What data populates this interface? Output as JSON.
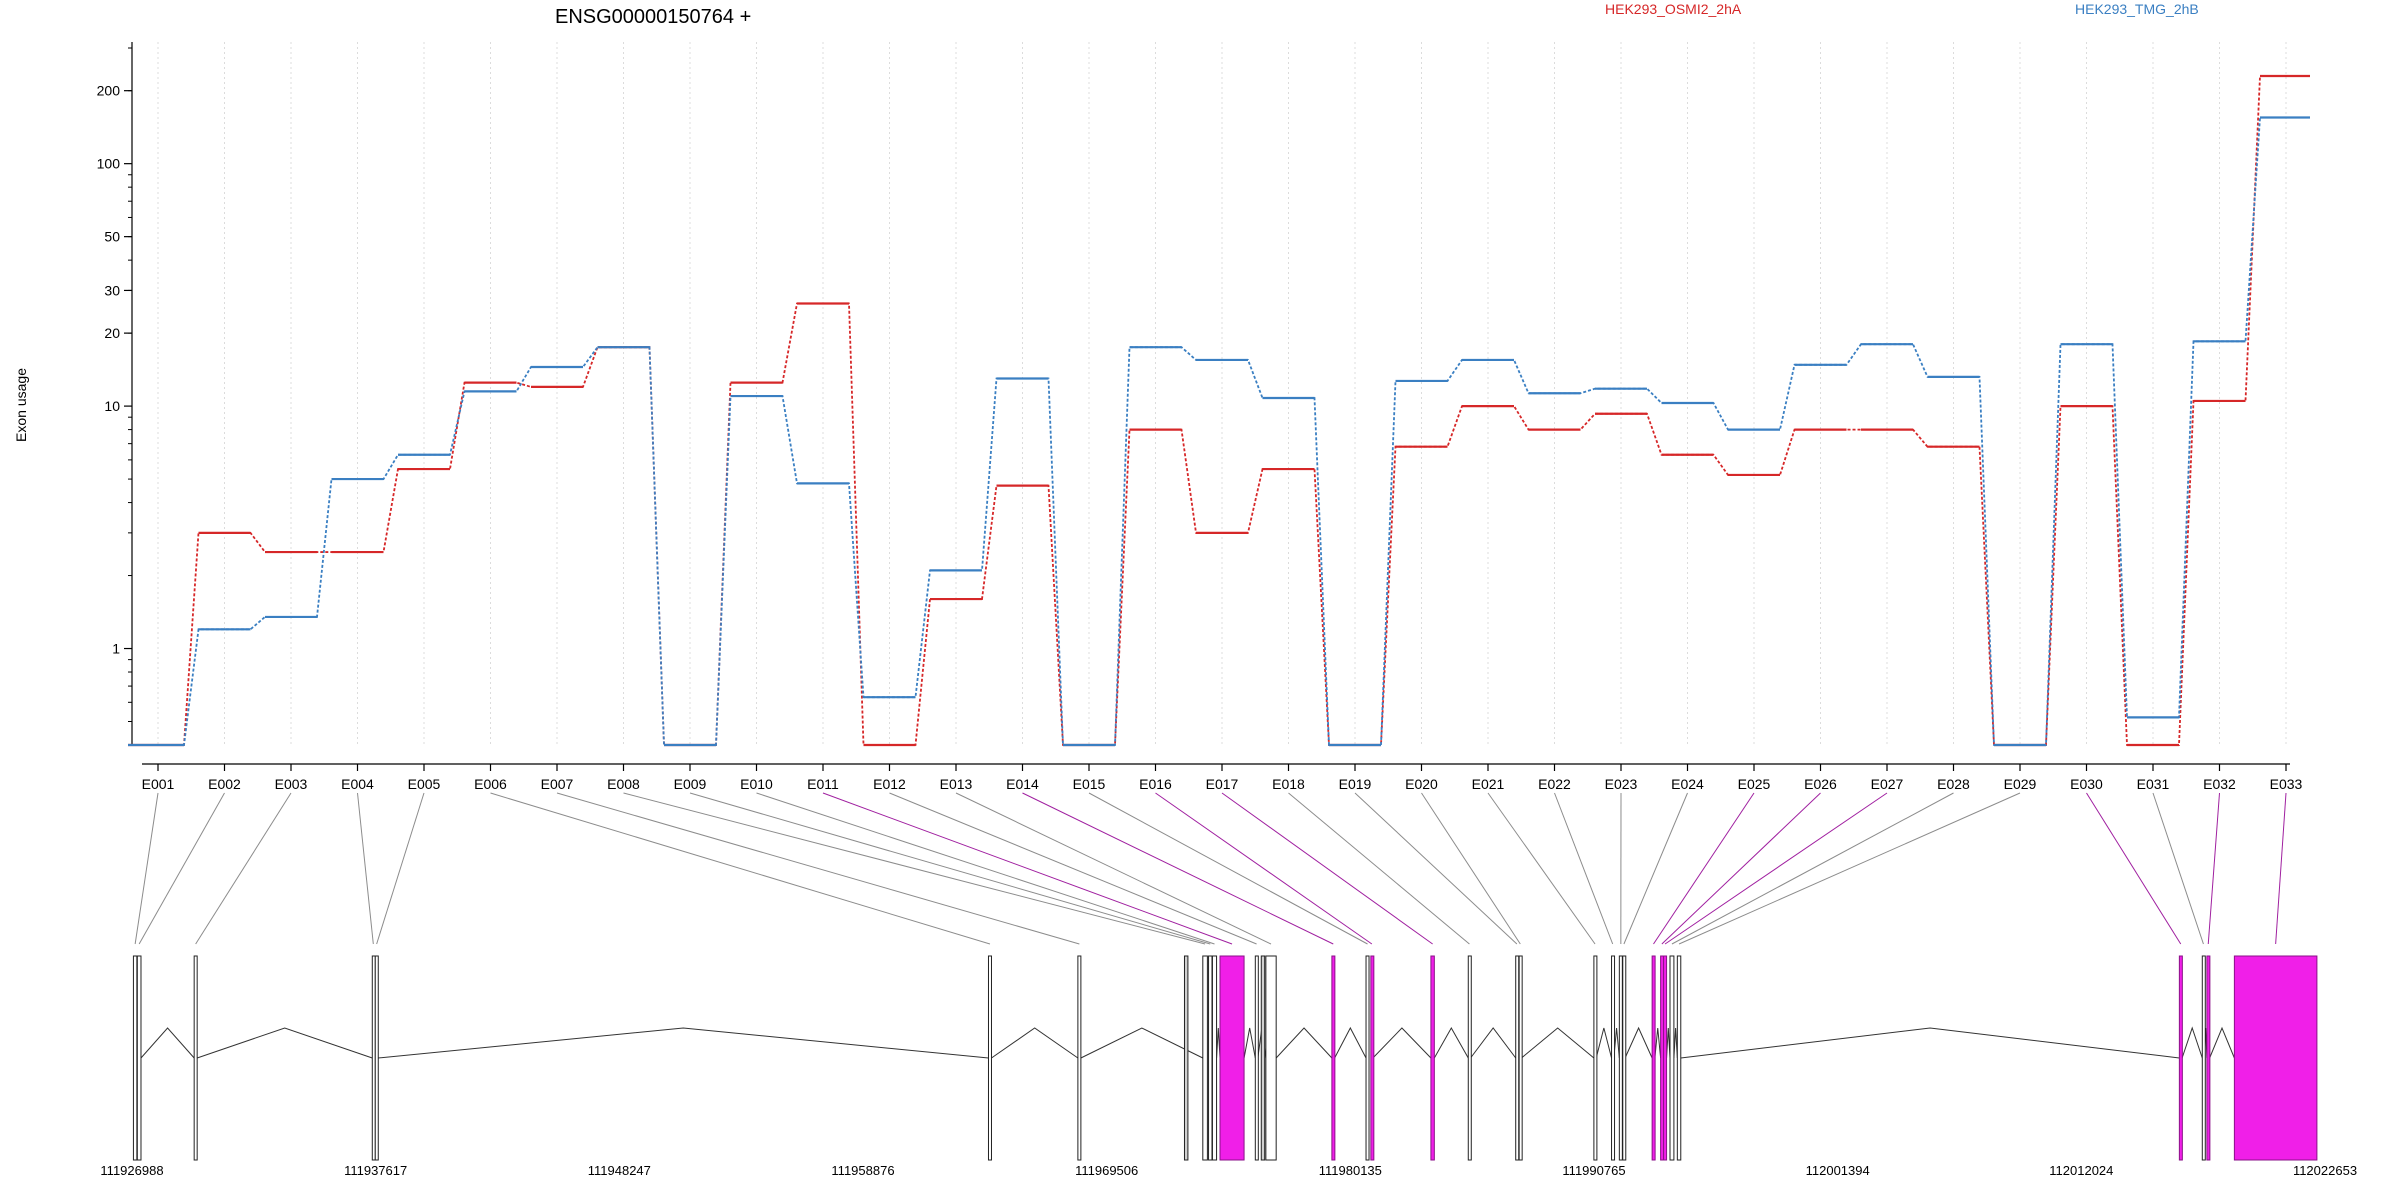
{
  "chart_data": {
    "type": "line",
    "title": "ENSG00000150764 +",
    "ylabel": "Exon usage",
    "yscale": "log",
    "ylim": [
      0.4,
      300
    ],
    "yticks": [
      1,
      10,
      20,
      30,
      50,
      100,
      200
    ],
    "legend_placement": "top",
    "categories": [
      "E001",
      "E002",
      "E003",
      "E004",
      "E005",
      "E006",
      "E007",
      "E008",
      "E009",
      "E010",
      "E011",
      "E012",
      "E013",
      "E014",
      "E015",
      "E016",
      "E017",
      "E018",
      "E019",
      "E020",
      "E021",
      "E022",
      "E023",
      "E024",
      "E025",
      "E026",
      "E027",
      "E028",
      "E029",
      "E030",
      "E031",
      "E032",
      "E033"
    ],
    "series": [
      {
        "name": "HEK293_OSMI2_2hA",
        "color": "#d62728",
        "values": [
          0.4,
          3.0,
          2.5,
          2.5,
          5.5,
          12.5,
          12.0,
          17.5,
          0.4,
          12.5,
          26.5,
          0.4,
          1.6,
          4.7,
          0.4,
          8.0,
          3.0,
          5.5,
          0.4,
          6.8,
          10.0,
          8.0,
          9.3,
          6.3,
          5.2,
          8.0,
          8.0,
          6.8,
          0.4,
          10.0,
          0.4,
          10.5,
          230
        ]
      },
      {
        "name": "HEK293_TMG_2hB",
        "color": "#3a7fc2",
        "values": [
          0.4,
          1.2,
          1.35,
          5.0,
          6.3,
          11.5,
          14.5,
          17.5,
          0.4,
          11.0,
          4.8,
          0.63,
          2.1,
          13.0,
          0.4,
          17.5,
          15.5,
          10.8,
          0.4,
          12.7,
          15.5,
          11.3,
          11.8,
          10.3,
          8.0,
          14.8,
          18.0,
          13.2,
          0.4,
          18.0,
          0.52,
          18.5,
          155
        ]
      }
    ],
    "gene_model": {
      "coordinate_labels": [
        "111926988",
        "111937617",
        "111948247",
        "111958876",
        "111969506",
        "111980135",
        "111990765",
        "112001394",
        "112012024",
        "112022653"
      ],
      "coordinate_values": [
        111926988,
        111937617,
        111948247,
        111958876,
        111969506,
        111980135,
        111990765,
        112001394,
        112012024,
        112022653
      ],
      "range": [
        111926988,
        112022653
      ],
      "highlight_color": "#f01fe8",
      "exons": [
        {
          "id": "E001",
          "start": 111927050,
          "end": 111927200,
          "hl": false
        },
        {
          "id": "E002",
          "start": 111927220,
          "end": 111927380,
          "hl": false
        },
        {
          "id": "E003",
          "start": 111929700,
          "end": 111929830,
          "hl": false
        },
        {
          "id": "E004",
          "start": 111937470,
          "end": 111937560,
          "hl": false
        },
        {
          "id": "E005",
          "start": 111937600,
          "end": 111937720,
          "hl": false
        },
        {
          "id": "E006",
          "start": 111964350,
          "end": 111964480,
          "hl": false
        },
        {
          "id": "E007",
          "start": 111968250,
          "end": 111968380,
          "hl": false
        },
        {
          "id": "E008",
          "start": 111973700,
          "end": 111973900,
          "hl": false
        },
        {
          "id": "E009",
          "start": 111973950,
          "end": 111974100,
          "hl": false
        },
        {
          "id": "E010",
          "start": 111974120,
          "end": 111974300,
          "hl": false
        },
        {
          "id": "E011",
          "start": 111974450,
          "end": 111975500,
          "hl": true
        },
        {
          "id": "E012",
          "start": 111975990,
          "end": 111976100,
          "hl": false
        },
        {
          "id": "E013",
          "start": 111976450,
          "end": 111976900,
          "hl": false
        },
        {
          "id": "E014",
          "start": 111979330,
          "end": 111979450,
          "hl": true
        },
        {
          "id": "E015",
          "start": 111980820,
          "end": 111980950,
          "hl": false
        },
        {
          "id": "E016",
          "start": 111981030,
          "end": 111981120,
          "hl": true
        },
        {
          "id": "E017",
          "start": 111983650,
          "end": 111983800,
          "hl": true
        },
        {
          "id": "E018",
          "start": 111985280,
          "end": 111985380,
          "hl": false
        },
        {
          "id": "E019",
          "start": 111987350,
          "end": 111987450,
          "hl": false
        },
        {
          "id": "E020",
          "start": 111987500,
          "end": 111987600,
          "hl": false
        },
        {
          "id": "E021",
          "start": 111990760,
          "end": 111990860,
          "hl": false
        },
        {
          "id": "E022",
          "start": 111991530,
          "end": 111991630,
          "hl": false
        },
        {
          "id": "E023",
          "start": 111991870,
          "end": 111992000,
          "hl": false
        },
        {
          "id": "E024",
          "start": 111992020,
          "end": 111992120,
          "hl": false
        },
        {
          "id": "E025",
          "start": 111993300,
          "end": 111993420,
          "hl": true
        },
        {
          "id": "E026",
          "start": 111993670,
          "end": 111993780,
          "hl": true
        },
        {
          "id": "E027",
          "start": 111993800,
          "end": 111993930,
          "hl": true
        },
        {
          "id": "E028",
          "start": 111994080,
          "end": 111994250,
          "hl": false
        },
        {
          "id": "E029",
          "start": 111994400,
          "end": 111994550,
          "hl": false
        },
        {
          "id": "E030",
          "start": 112016300,
          "end": 112016420,
          "hl": true
        },
        {
          "id": "E031",
          "start": 112017300,
          "end": 112017400,
          "hl": false
        },
        {
          "id": "E032",
          "start": 112017500,
          "end": 112017620,
          "hl": true
        },
        {
          "id": "E033",
          "start": 112018700,
          "end": 112022300,
          "hl": true
        }
      ],
      "extra_gray_blocks": [
        {
          "start": 111976250,
          "end": 111976400
        },
        {
          "start": 111972900,
          "end": 111973050
        }
      ]
    }
  }
}
